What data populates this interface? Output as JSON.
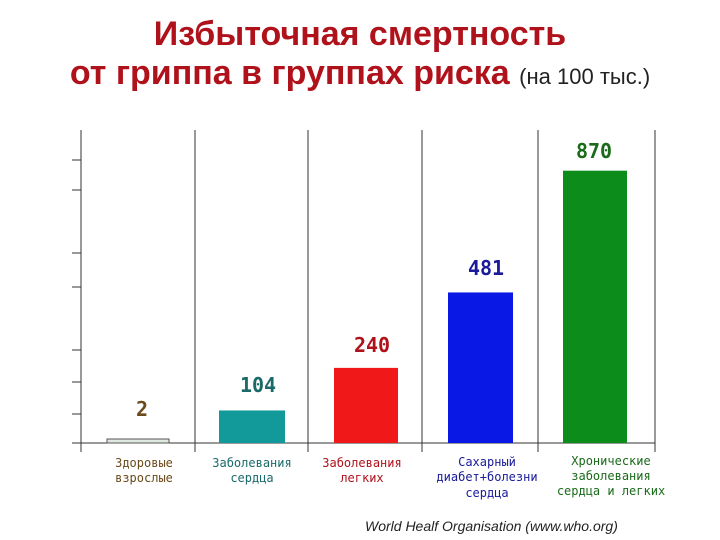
{
  "title": {
    "line1": "Избыточная смертность",
    "line2": "от гриппа в группах риска",
    "units": "(на 100 тыс.)"
  },
  "source": "World Healf Organisation (www.who.org)",
  "chart_data": {
    "type": "bar",
    "categories": [
      [
        "Здоровые",
        "взрослые"
      ],
      [
        "Заболевания",
        "сердца"
      ],
      [
        "Заболевания",
        "легких"
      ],
      [
        "Сахарный",
        "диабет+болезни",
        "сердца"
      ],
      [
        "Хронические",
        "заболевания",
        "сердца и легких"
      ]
    ],
    "values": [
      2,
      104,
      240,
      481,
      870
    ],
    "data_labels": [
      "2",
      "104",
      "240",
      "481",
      "870"
    ],
    "colors": [
      "#dfe9df",
      "#129a9a",
      "#f01818",
      "#0a18e6",
      "#0c8c1a"
    ],
    "label_colors": [
      "#6b4a1a",
      "#1a6a6a",
      "#b0121b",
      "#1a1a9a",
      "#1a6a1a"
    ],
    "category_label_colors": [
      "#6b4a1a",
      "#1a6a6a",
      "#b0121b",
      "#1a1a9a",
      "#1a6a1a"
    ],
    "ylim": [
      0,
      1000
    ],
    "grid": "vertical separators"
  }
}
